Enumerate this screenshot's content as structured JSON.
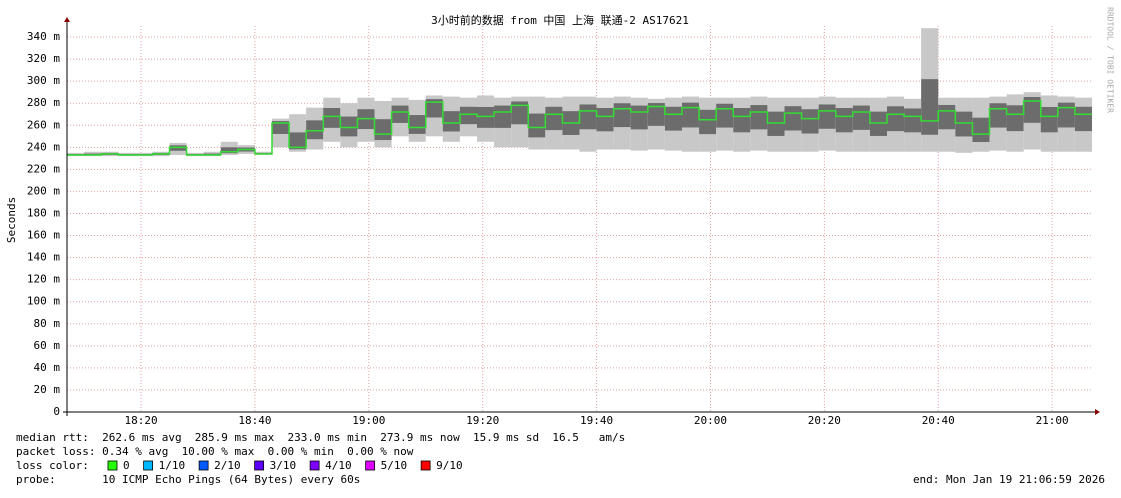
{
  "chart_data": {
    "type": "smokeping",
    "title": "3小时前的数据 from 中国 上海 联通-2 AS17621",
    "y_label": "Seconds",
    "watermark": "RRDTOOL / TOBI OETIKER",
    "ylim": [
      0,
      0.35
    ],
    "yticks": [
      0,
      {
        "value": 0.02,
        "label": "20 m"
      },
      {
        "value": 0.04,
        "label": "40 m"
      },
      {
        "value": 0.06,
        "label": "60 m"
      },
      {
        "value": 0.08,
        "label": "80 m"
      },
      {
        "value": 0.1,
        "label": "100 m"
      },
      {
        "value": 0.12,
        "label": "120 m"
      },
      {
        "value": 0.14,
        "label": "140 m"
      },
      {
        "value": 0.16,
        "label": "160 m"
      },
      {
        "value": 0.18,
        "label": "180 m"
      },
      {
        "value": 0.2,
        "label": "200 m"
      },
      {
        "value": 0.22,
        "label": "220 m"
      },
      {
        "value": 0.24,
        "label": "240 m"
      },
      {
        "value": 0.26,
        "label": "260 m"
      },
      {
        "value": 0.28,
        "label": "280 m"
      },
      {
        "value": 0.3,
        "label": "300 m"
      },
      {
        "value": 0.32,
        "label": "320 m"
      },
      {
        "value": 0.34,
        "label": "340 m"
      }
    ],
    "xlim": [
      "18:07",
      "21:07"
    ],
    "xticks": [
      "18:20",
      "18:40",
      "19:00",
      "19:20",
      "19:40",
      "20:00",
      "20:20",
      "20:40",
      "21:00"
    ],
    "color": "#33dd33",
    "smoke_color": "#555555",
    "x": [
      "18:07",
      "18:10",
      "18:13",
      "18:16",
      "18:19",
      "18:22",
      "18:25",
      "18:28",
      "18:31",
      "18:34",
      "18:37",
      "18:40",
      "18:43",
      "18:46",
      "18:49",
      "18:52",
      "18:55",
      "18:58",
      "19:01",
      "19:04",
      "19:07",
      "19:10",
      "19:13",
      "19:16",
      "19:19",
      "19:22",
      "19:25",
      "19:28",
      "19:31",
      "19:34",
      "19:37",
      "19:40",
      "19:43",
      "19:46",
      "19:49",
      "19:52",
      "19:55",
      "19:58",
      "20:01",
      "20:04",
      "20:07",
      "20:10",
      "20:13",
      "20:16",
      "20:19",
      "20:22",
      "20:25",
      "20:28",
      "20:31",
      "20:34",
      "20:37",
      "20:40",
      "20:43",
      "20:46",
      "20:49",
      "20:52",
      "20:55",
      "20:58",
      "21:01",
      "21:04"
    ],
    "values": [
      0.233,
      0.233,
      0.234,
      0.233,
      0.233,
      0.234,
      0.24,
      0.233,
      0.233,
      0.236,
      0.238,
      0.234,
      0.262,
      0.24,
      0.255,
      0.268,
      0.258,
      0.266,
      0.252,
      0.272,
      0.258,
      0.281,
      0.262,
      0.27,
      0.268,
      0.272,
      0.278,
      0.258,
      0.27,
      0.262,
      0.273,
      0.268,
      0.275,
      0.272,
      0.277,
      0.27,
      0.276,
      0.265,
      0.275,
      0.268,
      0.272,
      0.262,
      0.271,
      0.266,
      0.273,
      0.268,
      0.272,
      0.262,
      0.27,
      0.268,
      0.264,
      0.273,
      0.262,
      0.252,
      0.275,
      0.27,
      0.282,
      0.268,
      0.276,
      0.27
    ],
    "smoke_low": [
      0.232,
      0.232,
      0.232,
      0.232,
      0.232,
      0.232,
      0.233,
      0.232,
      0.232,
      0.233,
      0.234,
      0.233,
      0.24,
      0.236,
      0.238,
      0.245,
      0.24,
      0.245,
      0.24,
      0.25,
      0.245,
      0.25,
      0.245,
      0.25,
      0.245,
      0.24,
      0.24,
      0.238,
      0.238,
      0.238,
      0.236,
      0.238,
      0.238,
      0.237,
      0.238,
      0.237,
      0.236,
      0.236,
      0.237,
      0.236,
      0.237,
      0.236,
      0.236,
      0.236,
      0.237,
      0.236,
      0.236,
      0.236,
      0.236,
      0.236,
      0.236,
      0.236,
      0.235,
      0.236,
      0.237,
      0.236,
      0.238,
      0.236,
      0.236,
      0.236
    ],
    "smoke_high": [
      0.235,
      0.236,
      0.236,
      0.235,
      0.235,
      0.236,
      0.244,
      0.235,
      0.236,
      0.245,
      0.242,
      0.236,
      0.266,
      0.27,
      0.276,
      0.285,
      0.28,
      0.285,
      0.282,
      0.285,
      0.283,
      0.287,
      0.286,
      0.285,
      0.287,
      0.285,
      0.286,
      0.286,
      0.285,
      0.286,
      0.286,
      0.285,
      0.286,
      0.285,
      0.284,
      0.285,
      0.286,
      0.285,
      0.285,
      0.285,
      0.286,
      0.285,
      0.285,
      0.285,
      0.286,
      0.285,
      0.285,
      0.285,
      0.286,
      0.284,
      0.348,
      0.285,
      0.285,
      0.285,
      0.286,
      0.288,
      0.29,
      0.287,
      0.286,
      0.285
    ],
    "stats": [
      "median rtt:  262.6 ms avg  285.9 ms max  233.0 ms min  273.9 ms now  15.9 ms sd  16.5   am/s",
      "packet loss: 0.34 % avg  10.00 % max  0.00 % min  0.00 % now"
    ],
    "loss_label": "loss color:",
    "loss_colors": [
      {
        "label": "0",
        "color": "#26ff00"
      },
      {
        "label": "1/10",
        "color": "#00b8ff"
      },
      {
        "label": "2/10",
        "color": "#0059ff"
      },
      {
        "label": "3/10",
        "color": "#5e00ff"
      },
      {
        "label": "4/10",
        "color": "#7e00ff"
      },
      {
        "label": "5/10",
        "color": "#dd00ff"
      },
      {
        "label": "9/10",
        "color": "#ff0000"
      }
    ],
    "probe": "probe:       10 ICMP Echo Pings (64 Bytes) every 60s",
    "end": "end: Mon Jan 19 21:06:59 2026"
  }
}
